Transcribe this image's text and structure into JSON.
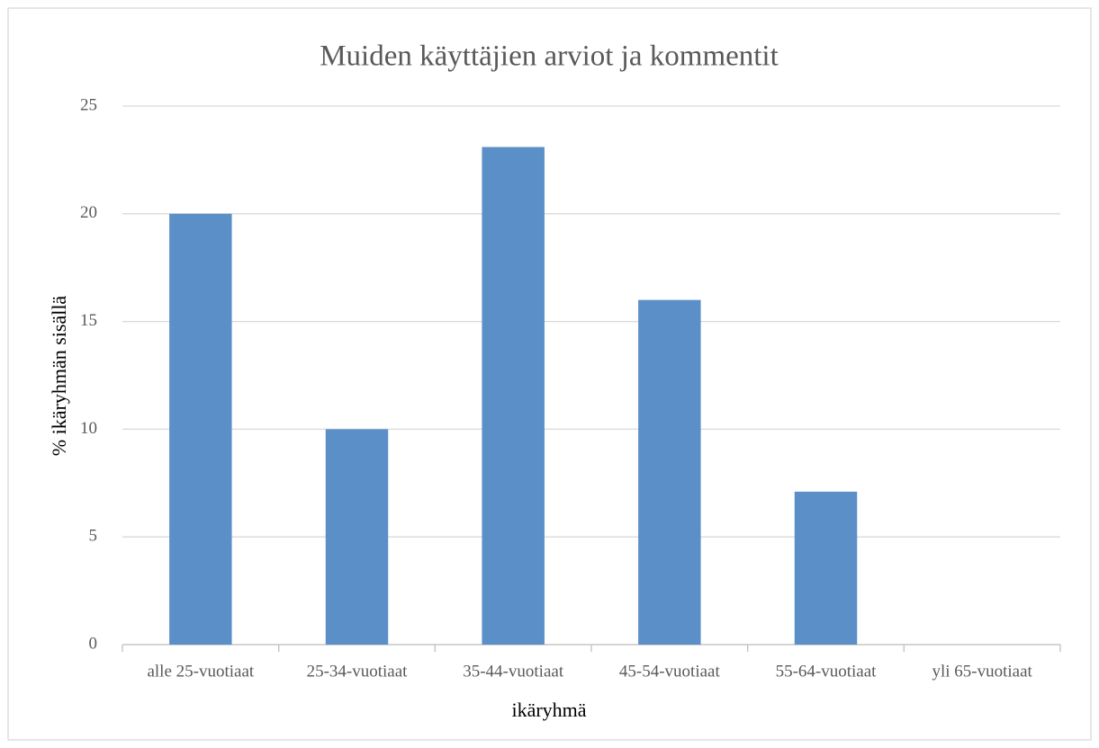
{
  "chart_data": {
    "type": "bar",
    "title": "Muiden käyttäjien arviot ja kommentit",
    "x_label": "ikäryhmä",
    "y_label": "% ikäryhmän sisällä",
    "categories": [
      "alle 25-vuotiaat",
      "25-34-vuotiaat",
      "35-44-vuotiaat",
      "45-54-vuotiaat",
      "55-64-vuotiaat",
      "yli 65-vuotiaat"
    ],
    "values": [
      20,
      10,
      23.1,
      16,
      7.1,
      0
    ],
    "color": "#5b8fc7",
    "ylim": [
      0,
      25
    ],
    "yticks": [
      0,
      5,
      10,
      15,
      20,
      25
    ],
    "grid": true
  }
}
